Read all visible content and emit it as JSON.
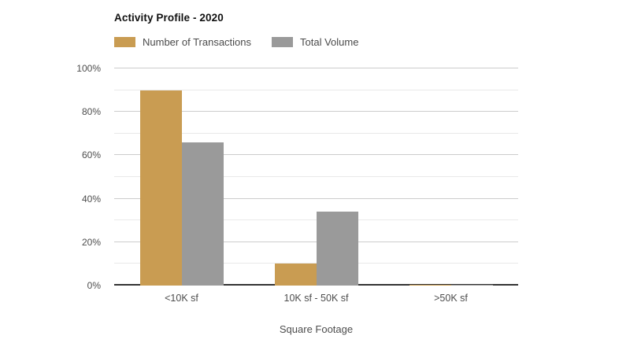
{
  "chart_data": {
    "type": "bar",
    "title": "Activity Profile - 2020",
    "xlabel": "Square Footage",
    "ylabel": "",
    "categories": [
      "<10K sf",
      "10K sf - 50K sf",
      ">50K sf"
    ],
    "series": [
      {
        "name": "Number of Transactions",
        "color": "#C99C52",
        "values": [
          90,
          10,
          0.5
        ]
      },
      {
        "name": "Total Volume",
        "color": "#9A9A9A",
        "values": [
          66,
          34,
          0.5
        ]
      }
    ],
    "ylim": [
      0,
      100
    ],
    "yticks": [
      0,
      20,
      40,
      60,
      80,
      100
    ],
    "ytick_labels": [
      "0%",
      "20%",
      "40%",
      "60%",
      "80%",
      "100%"
    ],
    "gridline_step": 10,
    "grid": "horizontal",
    "legend_position": "top-left",
    "axis_line_color": "#333333",
    "gridline_major_color": "#cccccc",
    "gridline_minor_color": "#e9e9e9",
    "background_color": "#ffffff"
  }
}
